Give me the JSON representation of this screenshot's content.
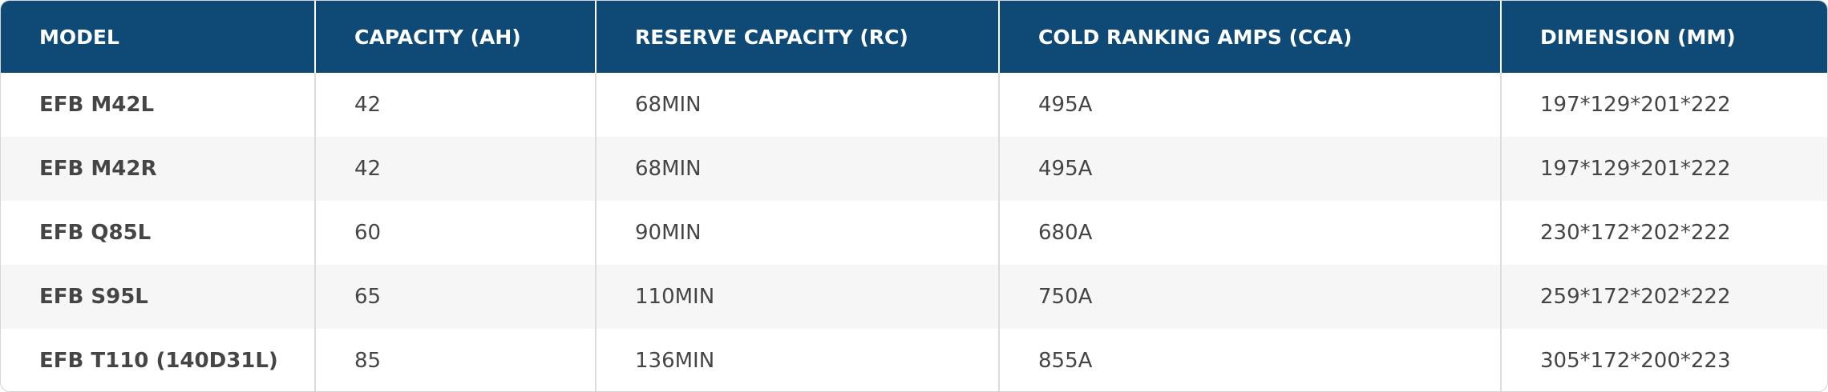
{
  "table": {
    "columns": [
      "MODEL",
      "CAPACITY (AH)",
      "RESERVE CAPACITY (RC)",
      "COLD RANKING AMPS (CCA)",
      "DIMENSION (MM)"
    ],
    "rows": [
      [
        "EFB M42L",
        "42",
        "68MIN",
        "495A",
        "197*129*201*222"
      ],
      [
        "EFB M42R",
        "42",
        "68MIN",
        "495A",
        "197*129*201*222"
      ],
      [
        "EFB Q85L",
        "60",
        "90MIN",
        "680A",
        "230*172*202*222"
      ],
      [
        "EFB S95L",
        "65",
        "110MIN",
        "750A",
        "259*172*202*222"
      ],
      [
        "EFB T110 (140D31L)",
        "85",
        "136MIN",
        "855A",
        "305*172*200*223"
      ]
    ]
  }
}
